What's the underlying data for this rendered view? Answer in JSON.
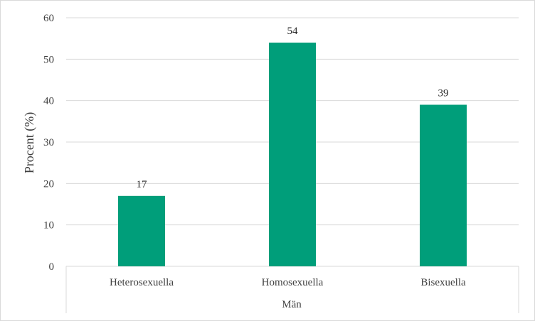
{
  "chart_data": {
    "type": "bar",
    "categories": [
      "Heterosexuella",
      "Homosexuella",
      "Bisexuella"
    ],
    "group_label": "Män",
    "values": [
      17,
      54,
      39
    ],
    "data_labels": [
      "17",
      "54",
      "39"
    ],
    "ylabel": "Procent (%)",
    "xlabel": "",
    "ylim": [
      0,
      60
    ],
    "yticks": [
      0,
      10,
      20,
      30,
      40,
      50,
      60
    ],
    "ytick_labels": [
      "0",
      "10",
      "20",
      "30",
      "40",
      "50",
      "60"
    ],
    "grid": true,
    "bar_color": "#009E7A",
    "grid_color": "#d9d9d9"
  }
}
